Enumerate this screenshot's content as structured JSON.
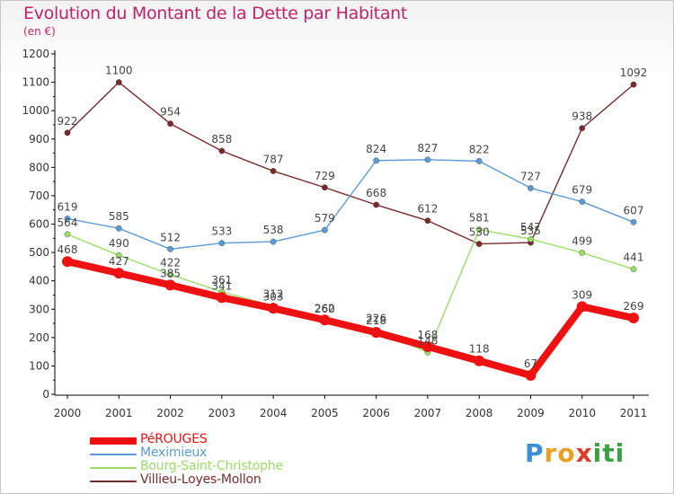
{
  "header": {
    "title": "Evolution du Montant de la Dette par Habitant",
    "subtitle": "(en €)"
  },
  "logo": {
    "letters": [
      {
        "ch": "P",
        "color": "#3a8fd6"
      },
      {
        "ch": "r",
        "color": "#e8a020"
      },
      {
        "ch": "o",
        "color": "#e8a020"
      },
      {
        "ch": "x",
        "color": "#e03a2a"
      },
      {
        "ch": "i",
        "color": "#3aa040"
      },
      {
        "ch": "t",
        "color": "#3aa040"
      },
      {
        "ch": "i",
        "color": "#3aa040"
      }
    ]
  },
  "chart_data": {
    "type": "line",
    "title": "Evolution du Montant de la Dette par Habitant",
    "subtitle": "(en €)",
    "xlabel": "",
    "ylabel": "",
    "categories": [
      "2000",
      "2001",
      "2002",
      "2003",
      "2004",
      "2005",
      "2006",
      "2007",
      "2008",
      "2009",
      "2010",
      "2011"
    ],
    "ylim": [
      0,
      1200
    ],
    "yticks": [
      0,
      100,
      200,
      300,
      400,
      500,
      600,
      700,
      800,
      900,
      1000,
      1100,
      1200
    ],
    "grid": false,
    "legend_position": "bottom-left",
    "series": [
      {
        "name": "PéROUGES",
        "color": "#ee1111",
        "values": [
          468,
          427,
          385,
          341,
          303,
          262,
          218,
          168,
          118,
          67,
          309,
          269
        ]
      },
      {
        "name": "Meximieux",
        "color": "#5b9bd5",
        "values": [
          619,
          585,
          512,
          533,
          538,
          579,
          824,
          827,
          822,
          727,
          679,
          607
        ]
      },
      {
        "name": "Bourg-Saint-Christophe",
        "color": "#99dd66",
        "values": [
          564,
          490,
          422,
          361,
          312,
          260,
          226,
          148,
          581,
          547,
          499,
          441
        ]
      },
      {
        "name": "Villieu-Loyes-Mollon",
        "color": "#7a2a2a",
        "values": [
          922,
          1100,
          954,
          858,
          787,
          729,
          668,
          612,
          530,
          535,
          938,
          1092
        ]
      }
    ]
  }
}
